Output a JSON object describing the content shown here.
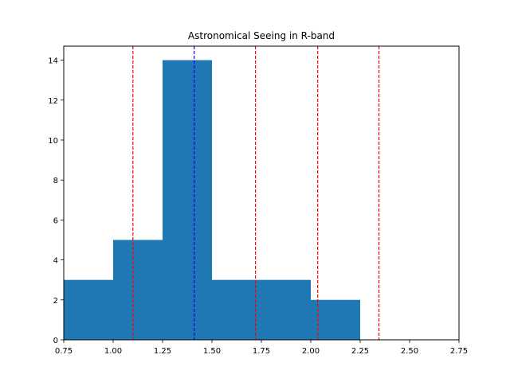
{
  "chart_data": {
    "type": "bar",
    "title": "Astronomical Seeing in R-band",
    "xlabel": "",
    "ylabel": "",
    "xlim": [
      0.75,
      2.75
    ],
    "ylim": [
      0,
      14.7
    ],
    "grid": false,
    "bins": [
      {
        "x0": 0.75,
        "x1": 1.0,
        "count": 3
      },
      {
        "x0": 1.0,
        "x1": 1.25,
        "count": 5
      },
      {
        "x0": 1.25,
        "x1": 1.5,
        "count": 14
      },
      {
        "x0": 1.5,
        "x1": 1.75,
        "count": 3
      },
      {
        "x0": 1.75,
        "x1": 2.0,
        "count": 3
      },
      {
        "x0": 2.0,
        "x1": 2.25,
        "count": 2
      },
      {
        "x0": 2.25,
        "x1": 2.5,
        "count": 0
      },
      {
        "x0": 2.5,
        "x1": 2.75,
        "count": 0
      }
    ],
    "x_ticks": [
      "0.75",
      "1.00",
      "1.25",
      "1.50",
      "1.75",
      "2.00",
      "2.25",
      "2.50",
      "2.75"
    ],
    "y_ticks": [
      "0",
      "2",
      "4",
      "6",
      "8",
      "10",
      "12",
      "14"
    ],
    "vlines": [
      {
        "x": 1.1,
        "color": "#ff0000",
        "style": "dashed"
      },
      {
        "x": 1.41,
        "color": "#0000ff",
        "style": "dashed"
      },
      {
        "x": 1.72,
        "color": "#ff0000",
        "style": "dashed"
      },
      {
        "x": 2.035,
        "color": "#ff0000",
        "style": "dashed"
      },
      {
        "x": 2.345,
        "color": "#ff0000",
        "style": "dashed"
      }
    ],
    "bar_color": "#1f77b4"
  }
}
